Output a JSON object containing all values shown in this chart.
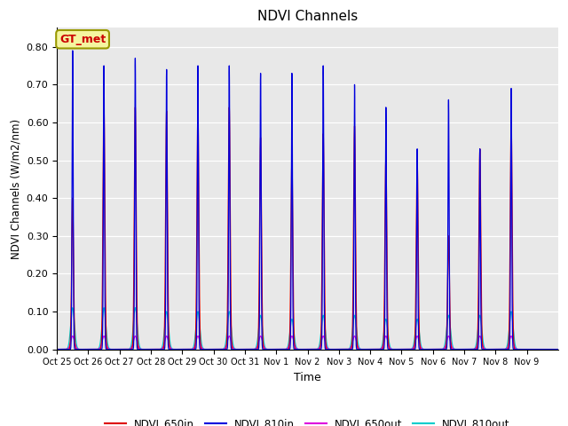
{
  "title": "NDVI Channels",
  "xlabel": "Time",
  "ylabel": "NDVI Channels (W/m2/nm)",
  "ylim": [
    0.0,
    0.85
  ],
  "background_color": "#e8e8e8",
  "annotation_text": "GT_met",
  "annotation_box_color": "#f5f5a0",
  "annotation_box_edgecolor": "#999900",
  "annotation_text_color": "#cc0000",
  "tick_labels": [
    "Oct 25",
    "Oct 26",
    "Oct 27",
    "Oct 28",
    "Oct 29",
    "Oct 30",
    "Oct 31",
    "Nov 1",
    "Nov 2",
    "Nov 3",
    "Nov 4",
    "Nov 5",
    "Nov 6",
    "Nov 7",
    "Nov 8",
    "Nov 9"
  ],
  "day_peaks_810in": [
    0.79,
    0.75,
    0.77,
    0.74,
    0.75,
    0.75,
    0.73,
    0.73,
    0.75,
    0.7,
    0.64,
    0.53,
    0.66,
    0.53,
    0.69,
    0.0
  ],
  "day_peaks_650in": [
    0.4,
    0.65,
    0.64,
    0.63,
    0.63,
    0.64,
    0.56,
    0.5,
    0.57,
    0.59,
    0.51,
    0.5,
    0.3,
    0.53,
    0.6,
    0.0
  ],
  "day_peaks_810out": [
    0.11,
    0.11,
    0.11,
    0.1,
    0.1,
    0.1,
    0.09,
    0.08,
    0.09,
    0.09,
    0.08,
    0.08,
    0.09,
    0.09,
    0.1,
    0.0
  ],
  "day_peaks_650out": [
    0.035,
    0.035,
    0.035,
    0.035,
    0.035,
    0.035,
    0.035,
    0.035,
    0.035,
    0.035,
    0.035,
    0.035,
    0.035,
    0.035,
    0.035,
    0.0
  ],
  "line_color_650in": "#dd0000",
  "line_color_810in": "#0000dd",
  "line_color_650out": "#dd00dd",
  "line_color_810out": "#00cccc",
  "legend_labels": [
    "NDVI_650in",
    "NDVI_810in",
    "NDVI_650out",
    "NDVI_810out"
  ]
}
